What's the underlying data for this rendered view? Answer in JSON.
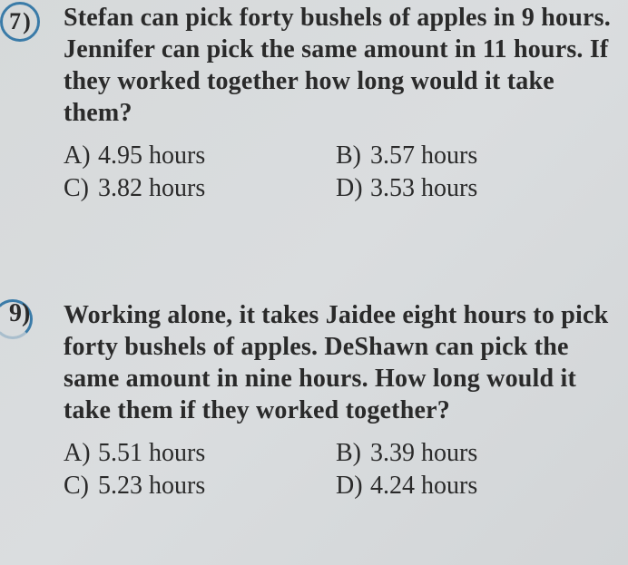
{
  "questions": [
    {
      "number": "7",
      "numberSuffix": ")",
      "bubbled": true,
      "stem": "Stefan can pick forty bushels of apples in 9 hours.  Jennifer can pick the same amount in 11 hours.  If they worked together how long would it take them?",
      "choices": {
        "A": {
          "letter": "A)",
          "text": "4.95 hours"
        },
        "B": {
          "letter": "B)",
          "text": "3.57 hours"
        },
        "C": {
          "letter": "C)",
          "text": "3.82 hours"
        },
        "D": {
          "letter": "D)",
          "text": "3.53 hours"
        }
      }
    },
    {
      "number": "9",
      "numberSuffix": ")",
      "bubbled": false,
      "stem": "Working alone, it takes Jaidee eight hours to pick forty bushels of apples.  DeShawn can pick the same amount in nine hours.  How long would it take them if they worked together?",
      "choices": {
        "A": {
          "letter": "A)",
          "text": "5.51 hours"
        },
        "B": {
          "letter": "B)",
          "text": "3.39 hours"
        },
        "C": {
          "letter": "C)",
          "text": "5.23 hours"
        },
        "D": {
          "letter": "D)",
          "text": "4.24 hours"
        }
      }
    }
  ],
  "colors": {
    "text": "#2a2a2a",
    "bubble": "#3a7ba8",
    "background": "#d8dbdc"
  },
  "fontsize_stem_pt": 21,
  "fontsize_choice_pt": 21
}
